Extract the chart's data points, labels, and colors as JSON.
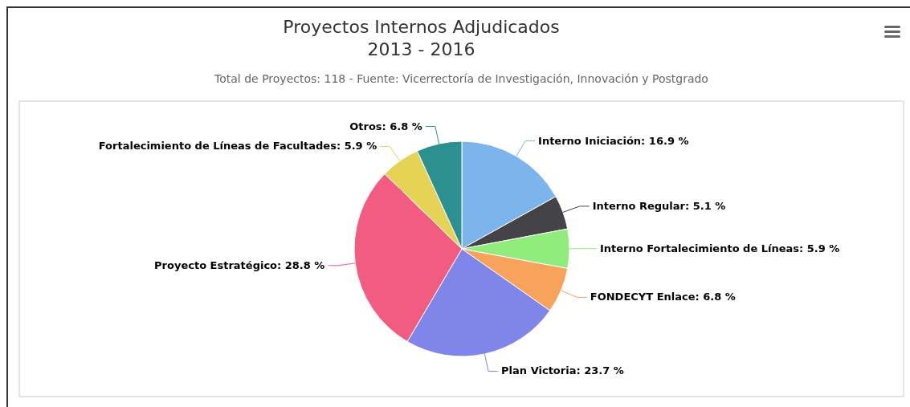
{
  "chart_data": {
    "type": "pie",
    "title": "Proyectos Internos Adjudicados\n2013 - 2016",
    "subtitle": "Total de Proyectos: 118 - Fuente: Vicerrectoría de Investigación, Innovación y Postgrado",
    "categories": [
      "Interno Iniciación",
      "Interno Regular",
      "Interno Fortalecimiento de Líneas",
      "FONDECYT Enlace",
      "Plan Victoria",
      "Proyecto Estratégico",
      "Fortalecimiento de Líneas de Facultades",
      "Otros"
    ],
    "values": [
      16.9,
      5.1,
      5.9,
      6.8,
      23.7,
      28.8,
      5.9,
      6.8
    ],
    "value_labels": [
      "16.9 %",
      "5.1 %",
      "5.9 %",
      "6.8 %",
      "23.7 %",
      "28.8 %",
      "5.9 %",
      "6.8 %"
    ],
    "colors": [
      "#7cb5ec",
      "#434348",
      "#90ed7d",
      "#f7a35c",
      "#8085e9",
      "#f15c80",
      "#e4d354",
      "#2b908f"
    ]
  }
}
